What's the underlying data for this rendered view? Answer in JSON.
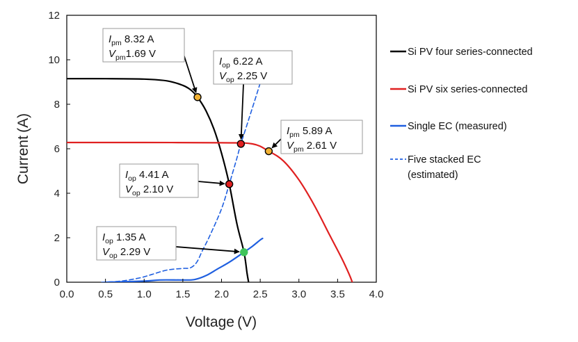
{
  "chart_data": {
    "type": "line",
    "xlabel": "Voltage (V)",
    "ylabel": "Current (A)",
    "xlim": [
      0,
      4
    ],
    "ylim": [
      0,
      12
    ],
    "xticks": [
      "0.0",
      "0.5",
      "1.0",
      "1.5",
      "2.0",
      "2.5",
      "3.0",
      "3.5",
      "4.0"
    ],
    "yticks": [
      "0",
      "2",
      "4",
      "6",
      "8",
      "10",
      "12"
    ],
    "grid": false,
    "legend_position": "right",
    "series": [
      {
        "name": "Si PV four series-connected",
        "color": "#000000",
        "style": "solid",
        "points": [
          [
            0,
            9.15
          ],
          [
            0.5,
            9.15
          ],
          [
            1.0,
            9.13
          ],
          [
            1.3,
            9.05
          ],
          [
            1.5,
            8.85
          ],
          [
            1.6,
            8.65
          ],
          [
            1.69,
            8.32
          ],
          [
            1.8,
            7.7
          ],
          [
            1.9,
            6.9
          ],
          [
            2.0,
            5.8
          ],
          [
            2.1,
            4.41
          ],
          [
            2.2,
            2.6
          ],
          [
            2.29,
            1.35
          ],
          [
            2.33,
            0.4
          ],
          [
            2.35,
            0
          ]
        ]
      },
      {
        "name": "Si PV six series-connected",
        "color": "#e02020",
        "style": "solid",
        "points": [
          [
            0,
            6.28
          ],
          [
            1.0,
            6.28
          ],
          [
            2.0,
            6.27
          ],
          [
            2.4,
            6.22
          ],
          [
            2.61,
            5.89
          ],
          [
            2.8,
            5.45
          ],
          [
            3.0,
            4.6
          ],
          [
            3.2,
            3.45
          ],
          [
            3.4,
            2.1
          ],
          [
            3.55,
            1.1
          ],
          [
            3.65,
            0.35
          ],
          [
            3.69,
            0
          ]
        ]
      },
      {
        "name": "Single EC (measured)",
        "color": "#1f5fe0",
        "style": "solid",
        "points": [
          [
            0.5,
            0
          ],
          [
            1.0,
            0.05
          ],
          [
            1.2,
            0.1
          ],
          [
            1.5,
            0.1
          ],
          [
            1.65,
            0.12
          ],
          [
            1.8,
            0.3
          ],
          [
            1.95,
            0.6
          ],
          [
            2.1,
            0.9
          ],
          [
            2.29,
            1.35
          ],
          [
            2.4,
            1.62
          ],
          [
            2.5,
            1.9
          ],
          [
            2.53,
            1.97
          ]
        ]
      },
      {
        "name": "Five stacked EC (estimated)",
        "color": "#1f5fe0",
        "style": "dashed",
        "points": [
          [
            0.45,
            0
          ],
          [
            0.7,
            0.05
          ],
          [
            0.95,
            0.2
          ],
          [
            1.1,
            0.35
          ],
          [
            1.3,
            0.55
          ],
          [
            1.5,
            0.62
          ],
          [
            1.6,
            0.65
          ],
          [
            1.68,
            0.9
          ],
          [
            1.75,
            1.4
          ],
          [
            1.85,
            2.1
          ],
          [
            2.0,
            3.3
          ],
          [
            2.1,
            4.41
          ],
          [
            2.2,
            5.6
          ],
          [
            2.25,
            6.22
          ],
          [
            2.35,
            7.3
          ],
          [
            2.45,
            8.4
          ],
          [
            2.5,
            8.95
          ]
        ]
      }
    ],
    "markers": [
      {
        "x": 1.69,
        "y": 8.32,
        "fill": "#f2b233",
        "edge": "#000000"
      },
      {
        "x": 2.61,
        "y": 5.89,
        "fill": "#f2b233",
        "edge": "#000000"
      },
      {
        "x": 2.25,
        "y": 6.22,
        "fill": "#e02020",
        "edge": "#000000"
      },
      {
        "x": 2.1,
        "y": 4.41,
        "fill": "#e02020",
        "edge": "#000000"
      },
      {
        "x": 2.29,
        "y": 1.35,
        "fill": "#3fc45a",
        "edge": "#3fc45a"
      }
    ],
    "annotations": [
      {
        "line1_var": "I",
        "line1_sub": "pm",
        "line1_val": " 8.32 A",
        "line2_var": "V",
        "line2_sub": "pm",
        "line2_val": "1.69 V",
        "tx": 1.69,
        "ty": 8.32
      },
      {
        "line1_var": "I",
        "line1_sub": "op",
        "line1_val": " 6.22 A",
        "line2_var": "V",
        "line2_sub": "op",
        "line2_val": " 2.25 V",
        "tx": 2.25,
        "ty": 6.22
      },
      {
        "line1_var": "I",
        "line1_sub": "pm",
        "line1_val": " 5.89 A",
        "line2_var": "V",
        "line2_sub": "pm",
        "line2_val": " 2.61 V",
        "tx": 2.61,
        "ty": 5.89
      },
      {
        "line1_var": "I",
        "line1_sub": "op",
        "line1_val": " 4.41 A",
        "line2_var": "V",
        "line2_sub": "op",
        "line2_val": " 2.10 V",
        "tx": 2.1,
        "ty": 4.41
      },
      {
        "line1_var": "I",
        "line1_sub": "op",
        "line1_val": " 1.35 A",
        "line2_var": "V",
        "line2_sub": "op",
        "line2_val": " 2.29 V",
        "tx": 2.29,
        "ty": 1.35
      }
    ],
    "legend": [
      {
        "label": "Si PV four series-connected",
        "color": "#000000",
        "style": "solid"
      },
      {
        "label": "Si PV six series-connected",
        "color": "#e02020",
        "style": "solid"
      },
      {
        "label": "Single EC (measured)",
        "color": "#1f5fe0",
        "style": "solid"
      },
      {
        "label_lines": [
          "Five stacked EC",
          "(estimated)"
        ],
        "color": "#1f5fe0",
        "style": "dashed"
      }
    ]
  }
}
